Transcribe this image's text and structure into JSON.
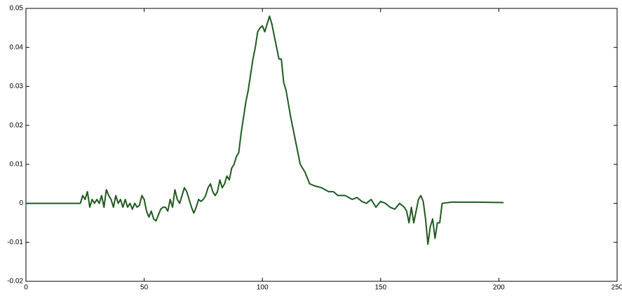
{
  "chart_data": {
    "type": "line",
    "x": [
      0,
      5,
      10,
      15,
      20,
      23,
      24,
      25,
      26,
      27,
      28,
      29,
      30,
      31,
      32,
      33,
      34,
      35,
      36,
      37,
      38,
      39,
      40,
      41,
      42,
      43,
      44,
      45,
      46,
      47,
      48,
      49,
      50,
      51,
      52,
      53,
      54,
      55,
      56,
      57,
      58,
      59,
      60,
      61,
      62,
      63,
      64,
      65,
      66,
      67,
      68,
      69,
      70,
      71,
      72,
      73,
      74,
      75,
      76,
      77,
      78,
      79,
      80,
      81,
      82,
      83,
      84,
      85,
      86,
      87,
      88,
      89,
      90,
      91,
      92,
      93,
      94,
      95,
      96,
      97,
      98,
      99,
      100,
      101,
      102,
      103,
      104,
      105,
      106,
      107,
      108,
      109,
      110,
      112,
      114,
      116,
      118,
      120,
      122,
      125,
      128,
      130,
      132,
      135,
      138,
      140,
      142,
      144,
      146,
      148,
      150,
      152,
      154,
      156,
      158,
      160,
      161,
      162,
      163,
      164,
      165,
      166,
      167,
      168,
      169,
      170,
      171,
      172,
      173,
      174,
      175,
      176,
      180,
      190,
      202
    ],
    "series": [
      {
        "color": "#1f5a1f",
        "values": [
          0,
          0,
          0,
          0,
          0,
          0,
          0.002,
          0.001,
          0.003,
          -0.001,
          0.001,
          0,
          0.001,
          0,
          0.002,
          -0.001,
          0.0035,
          0.002,
          0.001,
          -0.001,
          0.002,
          0,
          0.001,
          -0.001,
          0.001,
          -0.001,
          0,
          -0.0015,
          0,
          -0.001,
          -0.0005,
          0.002,
          0.001,
          -0.002,
          -0.0035,
          -0.002,
          -0.004,
          -0.0045,
          -0.003,
          -0.0015,
          -0.001,
          -0.001,
          -0.002,
          0.001,
          -0.001,
          0.0035,
          0.001,
          0,
          0.002,
          0.004,
          0.003,
          0.001,
          -0.001,
          -0.0025,
          -0.001,
          0.001,
          0.0005,
          0.001,
          0.002,
          0.004,
          0.005,
          0.003,
          0.002,
          0.003,
          0.006,
          0.004,
          0.005,
          0.007,
          0.006,
          0.009,
          0.01,
          0.012,
          0.013,
          0.018,
          0.022,
          0.026,
          0.029,
          0.033,
          0.037,
          0.04,
          0.044,
          0.045,
          0.0455,
          0.044,
          0.046,
          0.048,
          0.046,
          0.043,
          0.04,
          0.037,
          0.037,
          0.031,
          0.029,
          0.022,
          0.016,
          0.01,
          0.008,
          0.005,
          0.0045,
          0.004,
          0.003,
          0.003,
          0.002,
          0.002,
          0.001,
          0.0015,
          0.0005,
          0,
          0.001,
          -0.001,
          0.0005,
          0,
          -0.001,
          -0.0015,
          0,
          -0.001,
          -0.002,
          -0.005,
          -0.001,
          -0.005,
          -0.002,
          0.001,
          0.002,
          0.0005,
          -0.004,
          -0.0105,
          -0.006,
          -0.004,
          -0.009,
          -0.005,
          -0.005,
          0,
          0.0003,
          0.0003,
          0.0002
        ]
      }
    ],
    "xlim": [
      0,
      250
    ],
    "xticks": [
      0,
      50,
      100,
      150,
      200,
      250
    ],
    "ylim": [
      -0.02,
      0.05
    ],
    "yticks": [
      -0.02,
      -0.01,
      0,
      0.01,
      0.02,
      0.03,
      0.04,
      0.05
    ]
  }
}
